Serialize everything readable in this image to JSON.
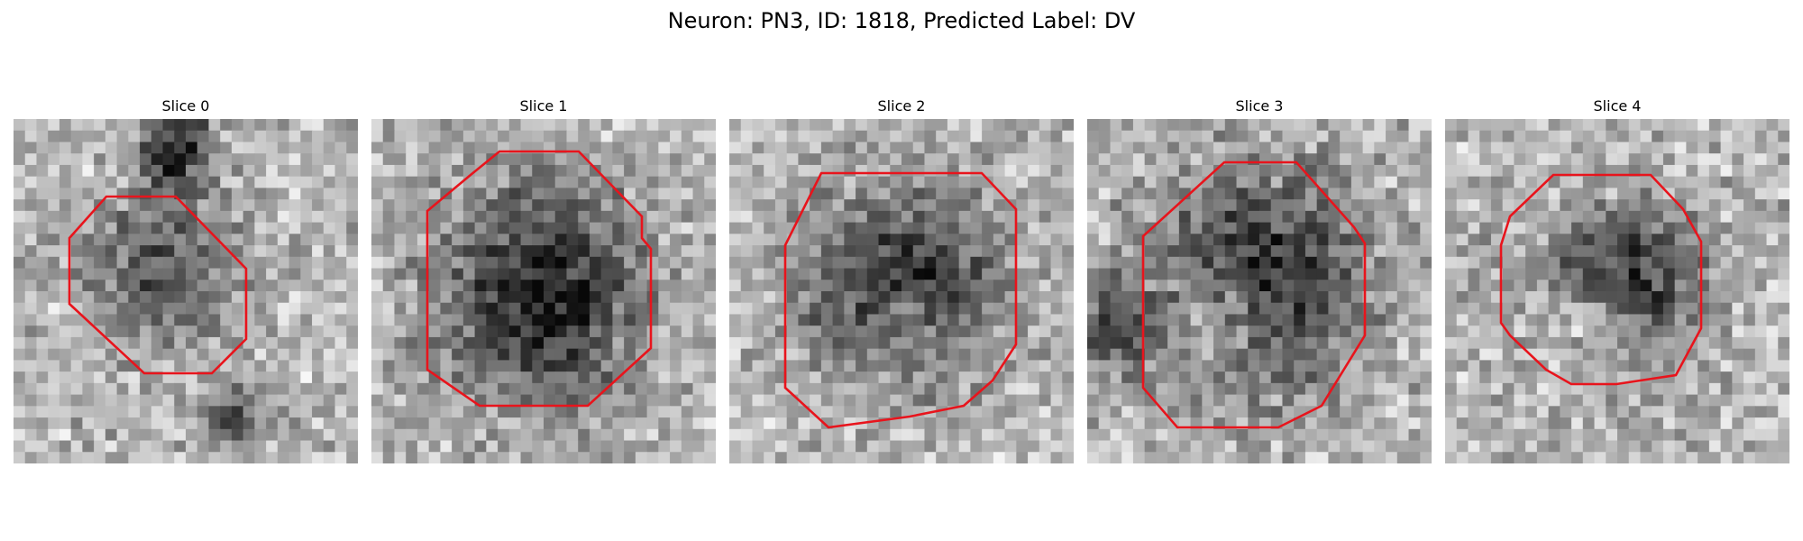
{
  "figure": {
    "title": "Neuron: PN3, ID: 1818, Predicted Label: DV"
  },
  "slices": [
    {
      "title": "Slice 0"
    },
    {
      "title": "Slice 1"
    },
    {
      "title": "Slice 2"
    },
    {
      "title": "Slice 3"
    },
    {
      "title": "Slice 4"
    }
  ],
  "style": {
    "contour_color": "#e8141c",
    "colormap": "grayscale"
  }
}
